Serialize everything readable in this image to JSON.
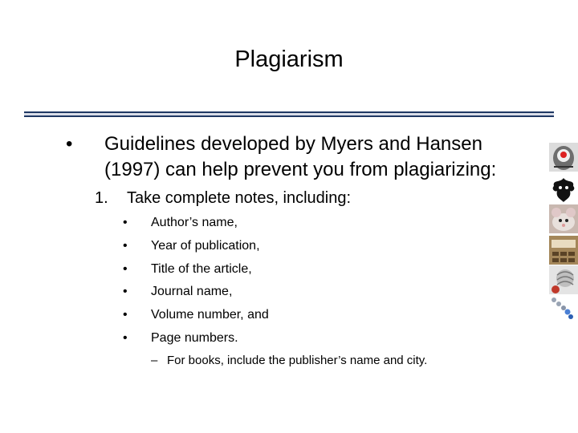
{
  "slide": {
    "title": "Plagiarism",
    "main_bullet": "Guidelines developed by Myers and Hansen (1997) can help prevent you from plagiarizing:",
    "step_number": "1.",
    "step_text": "Take complete notes, including:",
    "sub_items": [
      "Author’s name,",
      "Year of publication,",
      "Title of the article,",
      "Journal name,",
      "Volume number, and",
      "Page numbers."
    ],
    "note_dash": "–",
    "note": "For books, include the publisher’s name and city.",
    "bullet_glyph": "•"
  },
  "side_images": [
    "brain-icon",
    "inkblot-icon",
    "mouse-icon",
    "classroom-icon",
    "neuron-icon",
    "chain-icon"
  ]
}
